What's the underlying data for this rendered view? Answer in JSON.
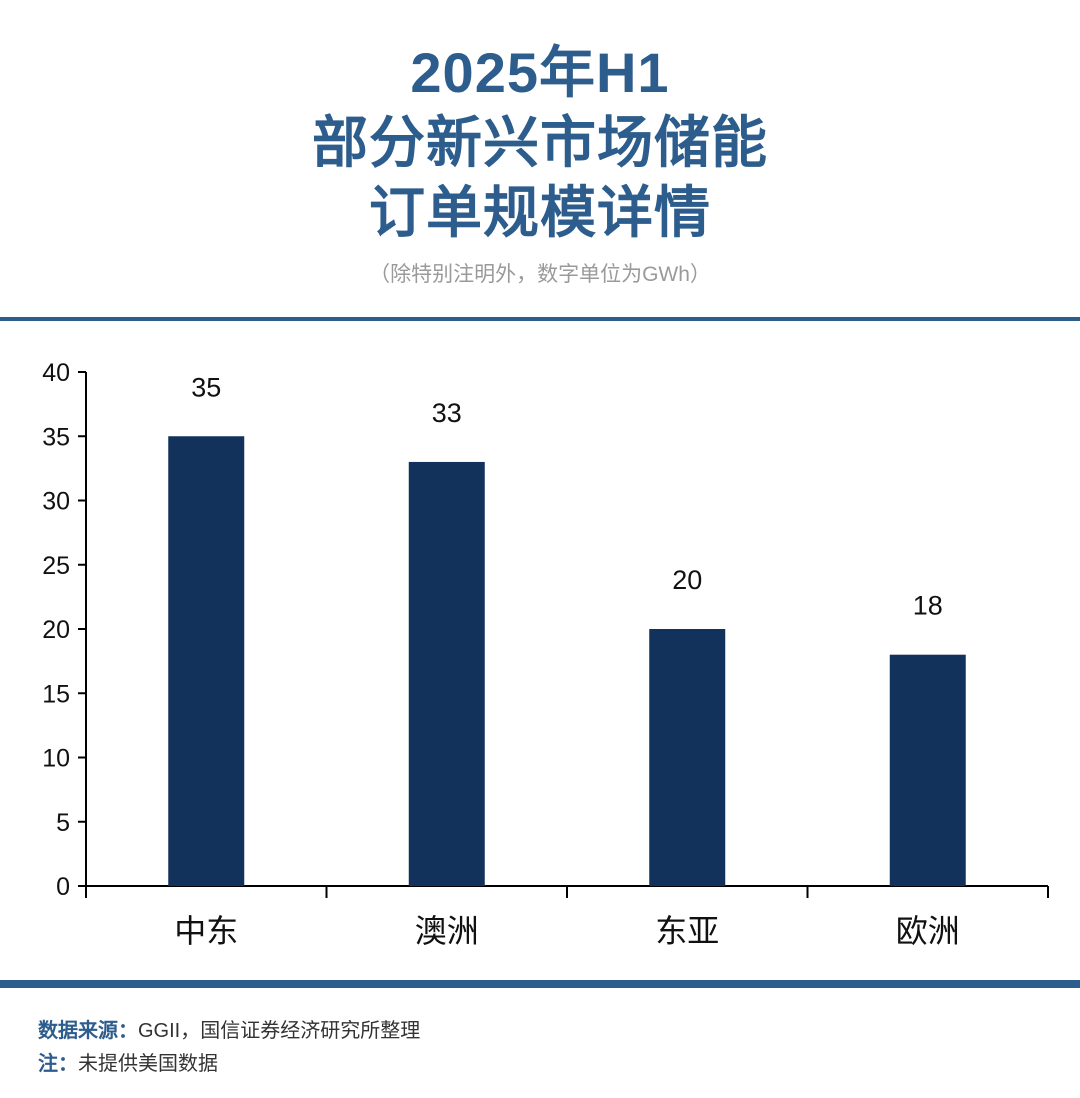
{
  "header": {
    "title_lines": [
      "2025年H1",
      "部分新兴市场储能",
      "订单规模详情"
    ],
    "subtitle": "（除特别注明外，数字单位为GWh）"
  },
  "chart_data": {
    "type": "bar",
    "categories": [
      "中东",
      "澳洲",
      "东亚",
      "欧洲"
    ],
    "values": [
      35,
      33,
      20,
      18
    ],
    "yticks": [
      0,
      5,
      10,
      15,
      20,
      25,
      30,
      35,
      40
    ],
    "ylim": [
      0,
      40
    ],
    "bar_color": "#12325c",
    "grid": false,
    "data_labels": true
  },
  "footer": {
    "source_label": "数据来源：",
    "source_text": "GGII，国信证券经济研究所整理",
    "note_label": "注：",
    "note_text": "未提供美国数据"
  }
}
